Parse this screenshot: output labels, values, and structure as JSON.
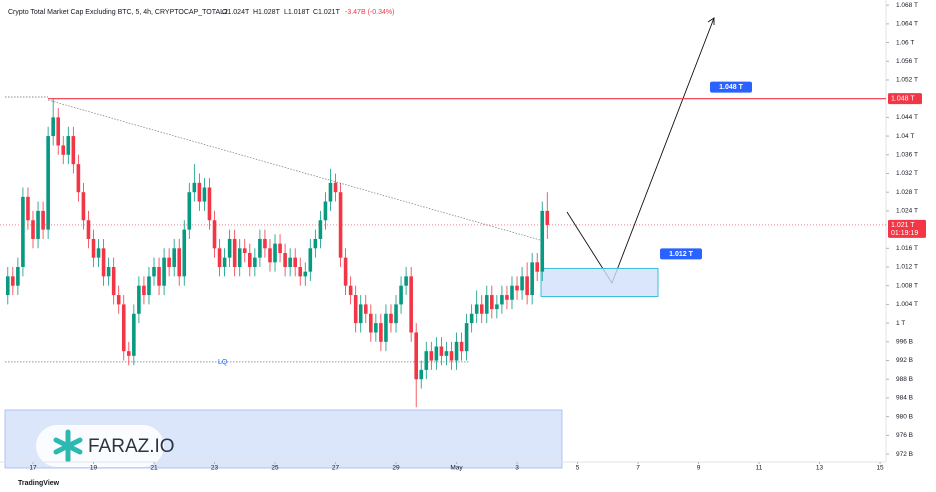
{
  "chart_data": {
    "type": "candlestick",
    "title": "Crypto Total Market Cap Excluding BTC, 5, 4h, CRYPTOCAP_TOTAL2",
    "ohlc_legend": {
      "open": "O1.024T",
      "high": "H1.028T",
      "low": "L1.018T",
      "close": "C1.021T",
      "change": "-3.47B (-0.34%)"
    },
    "open": [
      1006,
      1010,
      1008,
      1012,
      1027,
      1022,
      1018,
      1024,
      1020,
      1040,
      1044,
      1038,
      1036,
      1040,
      1034,
      1028,
      1022,
      1018,
      1014,
      1016,
      1010,
      1012,
      1006,
      1004,
      994,
      993,
      1002,
      1008,
      1006,
      1010,
      1012,
      1008,
      1014,
      1012,
      1016,
      1010,
      1020,
      1028,
      1030,
      1026,
      1029,
      1022,
      1016,
      1012,
      1014,
      1018,
      1012,
      1016,
      1015,
      1012,
      1014,
      1018,
      1016,
      1013,
      1017,
      1015,
      1012,
      1014,
      1012,
      1010,
      1011,
      1016,
      1018,
      1022,
      1026,
      1030,
      1028,
      1014,
      1008,
      1006,
      1000,
      1004,
      1002,
      998,
      1000,
      996,
      1002,
      1000,
      1004,
      1008,
      1010,
      998,
      988,
      990,
      994,
      992,
      995,
      993,
      994,
      992,
      996,
      994,
      1000,
      1002,
      1004,
      1002,
      1006,
      1003,
      1004,
      1006,
      1005,
      1008,
      1007,
      1010,
      1006,
      1013,
      1011,
      1024
    ],
    "high": [
      1012,
      1012,
      1014,
      1029,
      1029,
      1024,
      1026,
      1026,
      1042,
      1048,
      1046,
      1040,
      1042,
      1042,
      1036,
      1030,
      1024,
      1020,
      1018,
      1018,
      1014,
      1014,
      1008,
      1006,
      996,
      1004,
      1010,
      1010,
      1012,
      1014,
      1014,
      1016,
      1016,
      1018,
      1018,
      1022,
      1030,
      1034,
      1032,
      1031,
      1031,
      1024,
      1018,
      1016,
      1020,
      1020,
      1018,
      1018,
      1017,
      1016,
      1020,
      1020,
      1018,
      1019,
      1019,
      1017,
      1016,
      1016,
      1014,
      1013,
      1018,
      1020,
      1024,
      1028,
      1033,
      1032,
      1030,
      1016,
      1010,
      1008,
      1006,
      1006,
      1004,
      1002,
      1002,
      1004,
      1004,
      1006,
      1010,
      1012,
      1012,
      1000,
      992,
      996,
      996,
      997,
      997,
      996,
      996,
      998,
      998,
      1002,
      1004,
      1007,
      1006,
      1008,
      1008,
      1006,
      1008,
      1008,
      1010,
      1010,
      1012,
      1013,
      1015,
      1015,
      1026,
      1028
    ],
    "low": [
      1004,
      1006,
      1006,
      1010,
      1020,
      1016,
      1016,
      1018,
      1018,
      1038,
      1036,
      1034,
      1034,
      1032,
      1026,
      1020,
      1016,
      1012,
      1012,
      1008,
      1008,
      1004,
      1002,
      992,
      991,
      991,
      1000,
      1004,
      1004,
      1008,
      1006,
      1006,
      1010,
      1010,
      1008,
      1008,
      1018,
      1026,
      1024,
      1024,
      1020,
      1014,
      1010,
      1010,
      1012,
      1010,
      1010,
      1013,
      1010,
      1010,
      1012,
      1014,
      1011,
      1011,
      1013,
      1010,
      1010,
      1010,
      1008,
      1008,
      1009,
      1014,
      1016,
      1020,
      1024,
      1026,
      1012,
      1006,
      1004,
      998,
      998,
      1000,
      996,
      996,
      994,
      994,
      998,
      998,
      1002,
      1006,
      996,
      982,
      986,
      988,
      990,
      990,
      991,
      991,
      990,
      990,
      992,
      992,
      998,
      1000,
      1000,
      1000,
      1001,
      1001,
      1002,
      1003,
      1003,
      1005,
      1005,
      1004,
      1004,
      1009,
      1009,
      1018
    ],
    "close": [
      1010,
      1008,
      1012,
      1027,
      1022,
      1018,
      1024,
      1020,
      1040,
      1044,
      1038,
      1036,
      1040,
      1034,
      1028,
      1022,
      1018,
      1014,
      1016,
      1010,
      1012,
      1006,
      1004,
      994,
      993,
      1002,
      1008,
      1006,
      1010,
      1012,
      1008,
      1014,
      1012,
      1016,
      1010,
      1020,
      1028,
      1030,
      1026,
      1029,
      1022,
      1016,
      1012,
      1014,
      1018,
      1012,
      1016,
      1015,
      1012,
      1014,
      1018,
      1016,
      1013,
      1017,
      1015,
      1012,
      1014,
      1012,
      1010,
      1011,
      1016,
      1018,
      1022,
      1026,
      1030,
      1028,
      1014,
      1008,
      1006,
      1000,
      1004,
      1002,
      998,
      1000,
      996,
      1002,
      1000,
      1004,
      1008,
      1010,
      998,
      988,
      990,
      994,
      992,
      995,
      993,
      994,
      992,
      996,
      994,
      1000,
      1002,
      1004,
      1002,
      1006,
      1003,
      1004,
      1006,
      1005,
      1008,
      1007,
      1010,
      1006,
      1013,
      1011,
      1024,
      1021
    ],
    "up_color": "#089981",
    "down_color": "#f23645",
    "xlim": [
      -1.545,
      173.98
    ],
    "xticks": [
      {
        "value": 5,
        "label": "17"
      },
      {
        "value": 17,
        "label": "19"
      },
      {
        "value": 29,
        "label": "21"
      },
      {
        "value": 41,
        "label": "23"
      },
      {
        "value": 53,
        "label": "25"
      },
      {
        "value": 65,
        "label": "27"
      },
      {
        "value": 77,
        "label": "29"
      },
      {
        "value": 89,
        "label": "May"
      },
      {
        "value": 101,
        "label": "3"
      },
      {
        "value": 113,
        "label": "5"
      },
      {
        "value": 125,
        "label": "7"
      },
      {
        "value": 137,
        "label": "9"
      },
      {
        "value": 149,
        "label": "11"
      },
      {
        "value": 161,
        "label": "13"
      },
      {
        "value": 173,
        "label": "15"
      }
    ],
    "ylim": [
      970.3,
      1069.1
    ],
    "yticks": [
      {
        "value": 1068,
        "label": "1.068 T"
      },
      {
        "value": 1064,
        "label": "1.064 T"
      },
      {
        "value": 1060,
        "label": "1.06 T"
      },
      {
        "value": 1056,
        "label": "1.056 T"
      },
      {
        "value": 1052,
        "label": "1.052 T"
      },
      {
        "value": 1044,
        "label": "1.044 T"
      },
      {
        "value": 1040,
        "label": "1.04 T"
      },
      {
        "value": 1036,
        "label": "1.036 T"
      },
      {
        "value": 1032,
        "label": "1.032 T"
      },
      {
        "value": 1028,
        "label": "1.028 T"
      },
      {
        "value": 1024,
        "label": "1.024 T"
      },
      {
        "value": 1016,
        "label": "1.016 T"
      },
      {
        "value": 1012,
        "label": "1.012 T"
      },
      {
        "value": 1008,
        "label": "1.008 T"
      },
      {
        "value": 1004,
        "label": "1.004 T"
      },
      {
        "value": 1000,
        "label": "1 T"
      },
      {
        "value": 996,
        "label": "996 B"
      },
      {
        "value": 992,
        "label": "992 B"
      },
      {
        "value": 988,
        "label": "988 B"
      },
      {
        "value": 984,
        "label": "984 B"
      },
      {
        "value": 980,
        "label": "980 B"
      },
      {
        "value": 976,
        "label": "976 B"
      },
      {
        "value": 972,
        "label": "972 B"
      }
    ],
    "resistance": {
      "value": 1048,
      "label": "1.048 T",
      "color": "#f23645"
    },
    "current_price": {
      "value": 1021,
      "label": "1.021 T",
      "countdown": "01:19:19"
    },
    "liquidity": {
      "value": 991.7,
      "label": "LQ"
    },
    "zone": {
      "top": 1011.7,
      "bottom": 1005.7,
      "label": "1.012 T"
    },
    "watermark": "FARAZ.IO",
    "brand": "TradingView"
  }
}
